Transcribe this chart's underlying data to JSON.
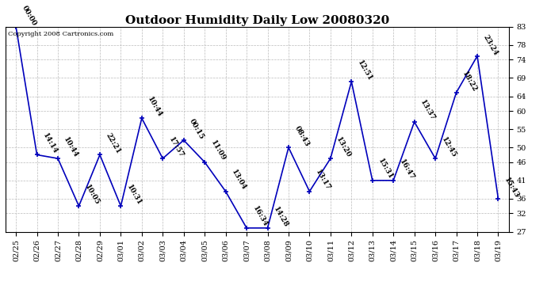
{
  "title": "Outdoor Humidity Daily Low 20080320",
  "copyright": "Copyright 2008 Cartronics.com",
  "x_labels": [
    "02/25",
    "02/26",
    "02/27",
    "02/28",
    "02/29",
    "03/01",
    "03/02",
    "03/03",
    "03/04",
    "03/05",
    "03/06",
    "03/07",
    "03/08",
    "03/09",
    "03/10",
    "03/11",
    "03/12",
    "03/13",
    "03/14",
    "03/15",
    "03/16",
    "03/17",
    "03/18",
    "03/19"
  ],
  "y_values": [
    83,
    48,
    47,
    34,
    48,
    34,
    58,
    47,
    52,
    46,
    38,
    28,
    28,
    50,
    38,
    47,
    68,
    41,
    41,
    57,
    47,
    65,
    75,
    36
  ],
  "point_labels": [
    "00:00",
    "14:14",
    "10:44",
    "10:05",
    "22:21",
    "10:31",
    "10:44",
    "17:57",
    "00:15",
    "11:09",
    "13:04",
    "16:34",
    "14:28",
    "08:43",
    "13:17",
    "13:20",
    "12:51",
    "15:31",
    "16:47",
    "13:37",
    "12:45",
    "18:22",
    "23:24",
    "15:43"
  ],
  "ylim": [
    27,
    83
  ],
  "yticks": [
    27,
    32,
    36,
    41,
    46,
    50,
    55,
    60,
    64,
    69,
    74,
    78,
    83
  ],
  "line_color": "#0000bb",
  "marker_color": "#0000bb",
  "bg_color": "#ffffff",
  "grid_color": "#bbbbbb",
  "title_fontsize": 11,
  "label_fontsize": 7,
  "annot_fontsize": 6.5
}
